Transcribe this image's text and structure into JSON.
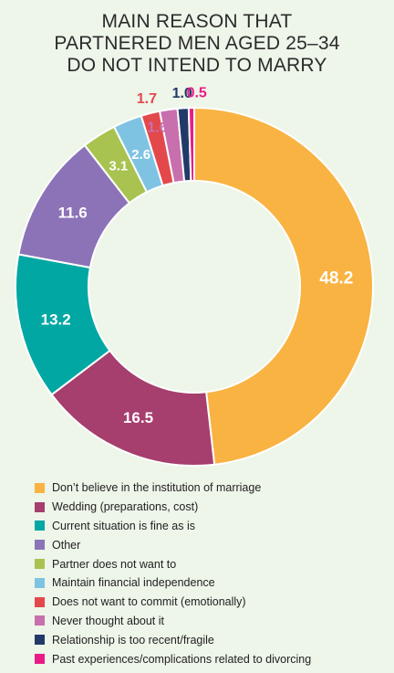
{
  "chart_data": {
    "type": "pie",
    "title_lines": [
      "MAIN REASON THAT",
      "PARTNERED MEN AGED 25–34",
      "DO NOT INTEND TO MARRY"
    ],
    "categories": [
      "Don’t believe in the institution of marriage",
      "Wedding (preparations, cost)",
      "Current situation is fine as is",
      "Other",
      "Partner does not want to",
      "Maintain financial independence",
      "Does not want to commit (emotionally)",
      "Never thought about it",
      "Relationship is too recent/fragile",
      "Past experiences/complications related to divorcing"
    ],
    "values": [
      48.2,
      16.5,
      13.2,
      11.6,
      3.1,
      2.6,
      1.7,
      1.6,
      1.0,
      0.5
    ],
    "labels": [
      "48.2",
      "16.5",
      "13.2",
      "11.6",
      "3.1",
      "2.6",
      "1.7",
      "1.6",
      "1.0",
      "0.5"
    ],
    "colors": [
      "#f9b342",
      "#a63e6e",
      "#00a7a3",
      "#8c73b7",
      "#a8c34f",
      "#7fc3e3",
      "#e3494b",
      "#c86fae",
      "#213a67",
      "#ea1b87"
    ],
    "donut": true,
    "legend_position": "bottom"
  }
}
